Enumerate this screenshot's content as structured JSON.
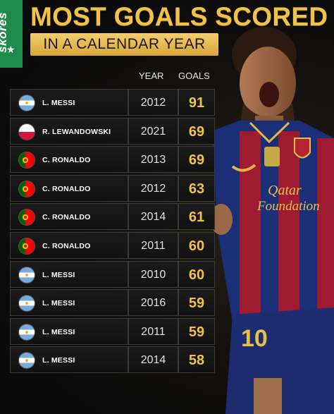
{
  "brand": {
    "name": "skores",
    "icon": "star-icon"
  },
  "title": "MOST GOALS SCORED",
  "subtitle": "IN A CALENDAR YEAR",
  "columns": {
    "year": "YEAR",
    "goals": "GOALS"
  },
  "rows": [
    {
      "player": "L. MESSI",
      "flag": "argentina",
      "year": "2012",
      "goals": "91"
    },
    {
      "player": "R. LEWANDOWSKI",
      "flag": "poland",
      "year": "2021",
      "goals": "69"
    },
    {
      "player": "C. RONALDO",
      "flag": "portugal",
      "year": "2013",
      "goals": "69"
    },
    {
      "player": "C. RONALDO",
      "flag": "portugal",
      "year": "2012",
      "goals": "63"
    },
    {
      "player": "C. RONALDO",
      "flag": "portugal",
      "year": "2014",
      "goals": "61"
    },
    {
      "player": "C. RONALDO",
      "flag": "portugal",
      "year": "2011",
      "goals": "60"
    },
    {
      "player": "L. MESSI",
      "flag": "argentina",
      "year": "2010",
      "goals": "60"
    },
    {
      "player": "L. MESSI",
      "flag": "argentina",
      "year": "2016",
      "goals": "59"
    },
    {
      "player": "L. MESSI",
      "flag": "argentina",
      "year": "2011",
      "goals": "59"
    },
    {
      "player": "L. MESSI",
      "flag": "argentina",
      "year": "2014",
      "goals": "58"
    }
  ],
  "jersey": {
    "sponsor_line1": "Qatar",
    "sponsor_line2": "Foundation",
    "number": "10"
  },
  "colors": {
    "gold": "#f0c14b",
    "brand_green": "#1f8a4c",
    "blaugrana_blue": "#1b2f78",
    "blaugrana_red": "#9e1b32"
  }
}
